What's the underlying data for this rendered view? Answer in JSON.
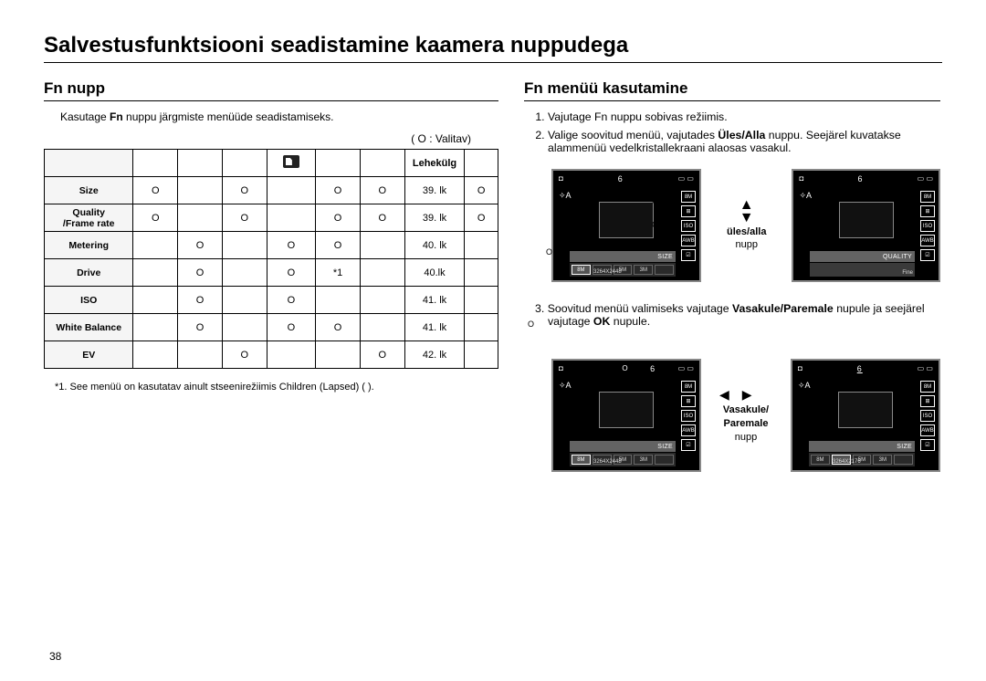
{
  "title": "Salvestusfunktsiooni seadistamine kaamera nuppudega",
  "left": {
    "heading": "Fn nupp",
    "intro_pre": "Kasutage ",
    "intro_bold": "Fn",
    "intro_post": " nuppu järgmiste menüüde seadistamiseks.",
    "legend": "(   O  : Valitav)",
    "page_col": "Lehekülg",
    "rows": [
      {
        "label": "Size",
        "c": [
          "O",
          "",
          "O",
          "",
          "O",
          "O"
        ],
        "page": "39. lk",
        "last": "O"
      },
      {
        "label": "Quality\n/Frame rate",
        "c": [
          "O",
          "",
          "O",
          "",
          "O",
          "O"
        ],
        "page": "39. lk",
        "last": "O"
      },
      {
        "label": "Metering",
        "c": [
          "",
          "O",
          "",
          "O",
          "O",
          ""
        ],
        "page": "40. lk",
        "last": ""
      },
      {
        "label": "Drive",
        "c": [
          "",
          "O",
          "",
          "O",
          "*1",
          ""
        ],
        "page": "40.lk",
        "last": ""
      },
      {
        "label": "ISO",
        "c": [
          "",
          "O",
          "",
          "O",
          "",
          ""
        ],
        "page": "41. lk",
        "last": ""
      },
      {
        "label": "White Balance",
        "c": [
          "",
          "O",
          "",
          "O",
          "O",
          ""
        ],
        "page": "41. lk",
        "last": ""
      },
      {
        "label": "EV",
        "c": [
          "",
          "",
          "O",
          "",
          "",
          "O"
        ],
        "page": "42. lk",
        "last": ""
      }
    ],
    "footnote": "*1. See menüü on kasutatav ainult stseenirežiimis Children (Lapsed) (       ).",
    "pagenum": "38"
  },
  "right": {
    "heading": "Fn menüü kasutamine",
    "step1": "Vajutage Fn nuppu sobivas režiimis.",
    "step2_pre": "Valige soovitud menüü, vajutades ",
    "step2_bold": "Üles/Alla",
    "step2_post": " nuppu. Seejärel kuvatakse alammenüü vedelkristallekraani alaosas vasakul.",
    "step3_pre": "Soovitud menüü valimiseks vajutage ",
    "step3_bold1": "Vasakule/Paremale",
    "step3_mid": " nupule ja seejärel vajutage ",
    "step3_bold2": "OK",
    "step3_post": " nupule.",
    "caption1_bold": "üles/alla",
    "caption1": "nupp",
    "caption2_bold": "Vasakule/\nParemale",
    "caption2": "nupp",
    "lcd": {
      "count": "6",
      "size_label": "SIZE",
      "quality_label": "QUALITY",
      "res1": "3264X2448",
      "res2": "3264X2176",
      "fine": "Fine",
      "thumbs": [
        "8M",
        "",
        "5M",
        "3M",
        ""
      ],
      "side": [
        "8M",
        "⊞",
        "ISO",
        "AWB",
        "☑"
      ]
    }
  }
}
